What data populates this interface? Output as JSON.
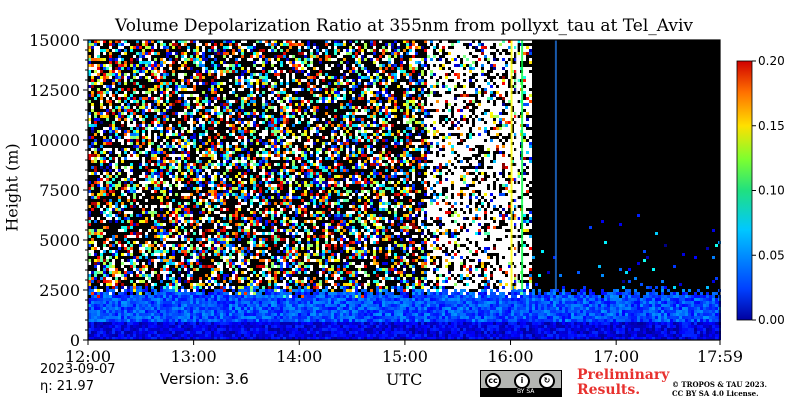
{
  "chart_data": {
    "type": "heatmap",
    "title": "Volume Depolarization Ratio at 355nm from pollyxt_tau at Tel_Aviv",
    "ylabel": "Height (m)",
    "xlabel": "UTC",
    "x_ticks": [
      "12:00",
      "13:00",
      "14:00",
      "15:00",
      "16:00",
      "17:00",
      "17:59"
    ],
    "x_tick_hours": [
      12.0,
      13.0,
      14.0,
      15.0,
      16.0,
      17.0,
      17.983
    ],
    "xlim_hours": [
      12.0,
      17.983
    ],
    "y_ticks": [
      "0",
      "2500",
      "5000",
      "7500",
      "10000",
      "12500",
      "15000"
    ],
    "y_tick_values": [
      0,
      2500,
      5000,
      7500,
      10000,
      12500,
      15000
    ],
    "ylim": [
      0,
      15000
    ],
    "colorbar": {
      "ticks": [
        "0.00",
        "0.05",
        "0.10",
        "0.15",
        "0.20"
      ],
      "tick_values": [
        0.0,
        0.05,
        0.1,
        0.15,
        0.2
      ],
      "range": [
        0.0,
        0.2
      ],
      "colormap": "jet"
    },
    "features": {
      "boundary_layer_top_m": 2500,
      "boundary_layer_depol": 0.04,
      "near_surface_depol": 0.02,
      "free_troposphere": "noisy (signal ~ noise) until ~16:00 UTC",
      "dark_period_hours": [
        16.2,
        17.983
      ],
      "bright_noise_period_hours": [
        15.2,
        16.2
      ]
    },
    "background_color": "#000000"
  },
  "footer": {
    "date": "2023-09-07",
    "eta": "η:  21.97",
    "version": "Version: 3.6",
    "utc": "UTC",
    "preliminary": [
      "Preliminary",
      "Results."
    ],
    "license": [
      "© TROPOS & TAU 2023.",
      "CC BY SA 4.0 License."
    ],
    "cc_badge": "BY SA"
  }
}
